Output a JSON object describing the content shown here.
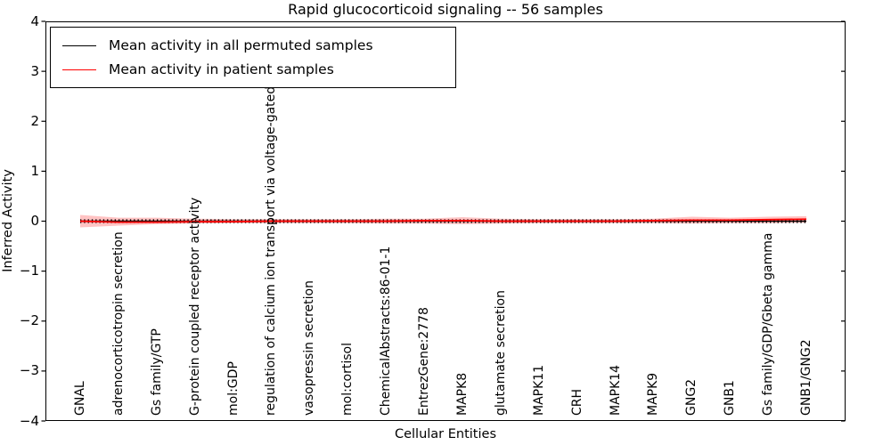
{
  "chart_data": {
    "type": "line",
    "title": "Rapid glucocorticoid signaling -- 56 samples",
    "xlabel": "Cellular Entities",
    "ylabel": "Inferred Activity",
    "ylim": [
      -4,
      4
    ],
    "ytick_labels": [
      "4",
      "3",
      "2",
      "1",
      "0",
      "−1",
      "−2",
      "−3",
      "−4"
    ],
    "ytick_values": [
      4,
      3,
      2,
      1,
      0,
      -1,
      -2,
      -3,
      -4
    ],
    "grid": false,
    "legend_position": "upper left",
    "categories": [
      "GNAL",
      "adrenocorticotropin secretion",
      "Gs family/GTP",
      "G-protein coupled receptor activity",
      "mol:GDP",
      "regulation of calcium ion transport via voltage-gated channels",
      "vasopressin secretion",
      "mol:cortisol",
      "ChemicalAbstracts:86-01-1",
      "EntrezGene:2778",
      "MAPK8",
      "glutamate secretion",
      "MAPK11",
      "CRH",
      "MAPK14",
      "MAPK9",
      "GNG2",
      "GNB1",
      "Gs family/GDP/Gbeta gamma",
      "GNB1/GNG2"
    ],
    "series": [
      {
        "name": "Mean activity in all permuted samples",
        "color": "#000000",
        "values": [
          0,
          0,
          0,
          0,
          0,
          0,
          0,
          0,
          0,
          0,
          0,
          0,
          0,
          0,
          0,
          0,
          0,
          0,
          0,
          0
        ],
        "band_halfwidth": 0.03,
        "band_color": "rgba(128,128,128,0.35)"
      },
      {
        "name": "Mean activity in patient samples",
        "color": "#ff0000",
        "values": [
          0.0,
          -0.02,
          -0.02,
          -0.01,
          -0.01,
          0.0,
          0.0,
          0.0,
          0.0,
          0.01,
          0.01,
          0.0,
          0.0,
          0.0,
          0.0,
          0.01,
          0.02,
          0.02,
          0.03,
          0.04
        ],
        "band_upper": [
          0.125,
          0.07,
          0.07,
          0.05,
          0.04,
          0.04,
          0.04,
          0.04,
          0.05,
          0.05,
          0.08,
          0.05,
          0.04,
          0.04,
          0.04,
          0.05,
          0.09,
          0.07,
          0.09,
          0.1
        ],
        "band_lower": [
          -0.125,
          -0.09,
          -0.06,
          -0.05,
          -0.04,
          -0.04,
          -0.04,
          -0.04,
          -0.05,
          -0.05,
          -0.06,
          -0.05,
          -0.04,
          -0.04,
          -0.04,
          -0.04,
          -0.05,
          -0.04,
          -0.04,
          -0.03
        ],
        "band_color": "rgba(255,40,40,0.28)"
      }
    ]
  }
}
